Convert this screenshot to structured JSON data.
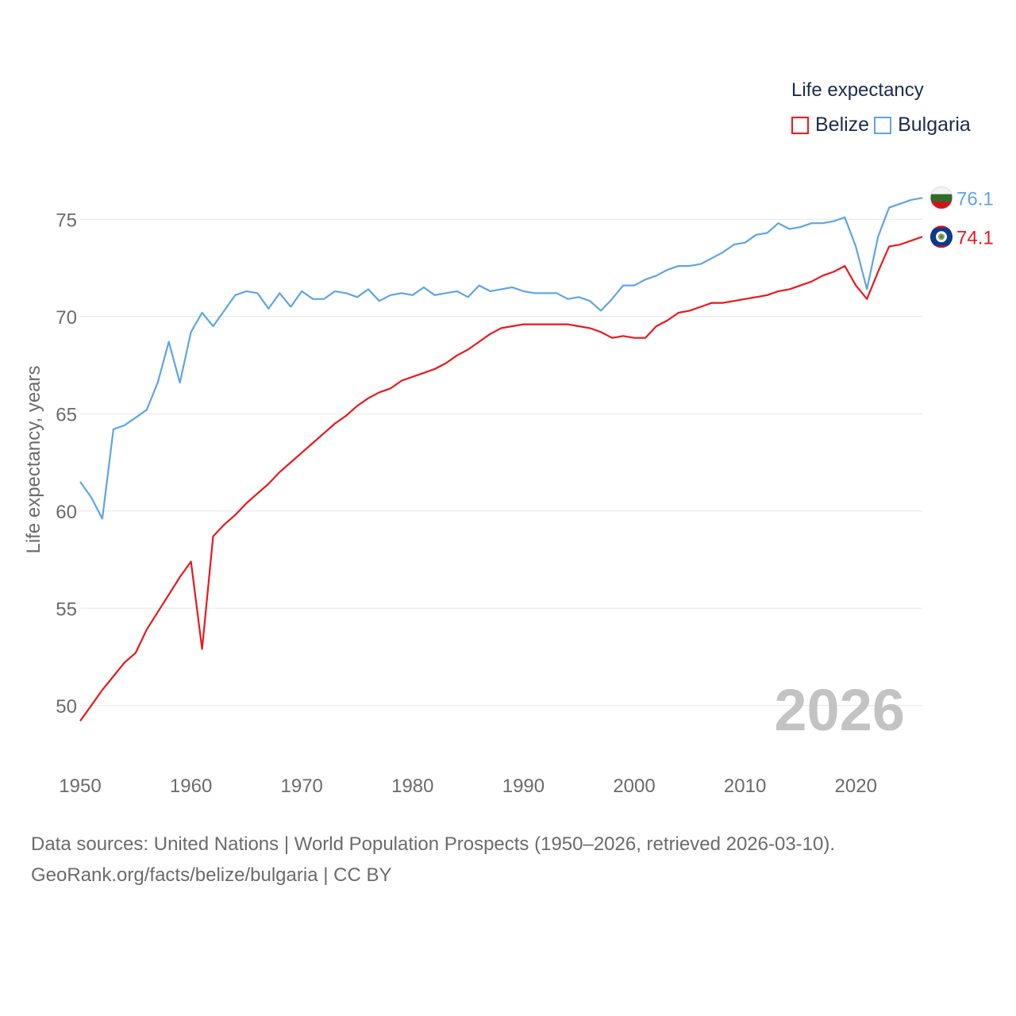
{
  "legend": {
    "title": "Life expectancy",
    "items": [
      {
        "label": "Belize",
        "color": "#e8191c"
      },
      {
        "label": "Bulgaria",
        "color": "#5fa4e4"
      }
    ]
  },
  "source": {
    "line1": "Data sources: United Nations | World Population Prospects (1950–2026, retrieved 2026-03-10).",
    "line2": "GeoRank.org/facts/belize/bulgaria | CC BY"
  },
  "chart_data": {
    "type": "line",
    "title": "Life expectancy",
    "xlabel": "",
    "ylabel": "Life expectancy, years",
    "year_label": "2026",
    "xlim": [
      1950,
      2026
    ],
    "ylim": [
      47.5,
      77.5
    ],
    "x_ticks": [
      1950,
      1960,
      1970,
      1980,
      1990,
      2000,
      2010,
      2020
    ],
    "y_ticks": [
      50,
      55,
      60,
      65,
      70,
      75
    ],
    "grid": true,
    "legend_position": "top-right",
    "x": [
      1950,
      1951,
      1952,
      1953,
      1954,
      1955,
      1956,
      1957,
      1958,
      1959,
      1960,
      1961,
      1962,
      1963,
      1964,
      1965,
      1966,
      1967,
      1968,
      1969,
      1970,
      1971,
      1972,
      1973,
      1974,
      1975,
      1976,
      1977,
      1978,
      1979,
      1980,
      1981,
      1982,
      1983,
      1984,
      1985,
      1986,
      1987,
      1988,
      1989,
      1990,
      1991,
      1992,
      1993,
      1994,
      1995,
      1996,
      1997,
      1998,
      1999,
      2000,
      2001,
      2002,
      2003,
      2004,
      2005,
      2006,
      2007,
      2008,
      2009,
      2010,
      2011,
      2012,
      2013,
      2014,
      2015,
      2016,
      2017,
      2018,
      2019,
      2020,
      2021,
      2022,
      2023,
      2024,
      2025,
      2026
    ],
    "series": [
      {
        "name": "Belize",
        "color": "#e8191c",
        "end_label": "74.1",
        "flag": "belize-flag",
        "values": [
          49.2,
          50.0,
          50.8,
          51.5,
          52.2,
          52.7,
          53.9,
          54.8,
          55.7,
          56.6,
          57.4,
          52.9,
          58.7,
          59.3,
          59.8,
          60.4,
          60.9,
          61.4,
          62.0,
          62.5,
          63.0,
          63.5,
          64.0,
          64.5,
          64.9,
          65.4,
          65.8,
          66.1,
          66.3,
          66.7,
          66.9,
          67.1,
          67.3,
          67.6,
          68.0,
          68.3,
          68.7,
          69.1,
          69.4,
          69.5,
          69.6,
          69.6,
          69.6,
          69.6,
          69.6,
          69.5,
          69.4,
          69.2,
          68.9,
          69.0,
          68.9,
          68.9,
          69.5,
          69.8,
          70.2,
          70.3,
          70.5,
          70.7,
          70.7,
          70.8,
          70.9,
          71.0,
          71.1,
          71.3,
          71.4,
          71.6,
          71.8,
          72.1,
          72.3,
          72.6,
          71.6,
          70.9,
          72.3,
          73.6,
          73.7,
          73.9,
          74.1
        ]
      },
      {
        "name": "Bulgaria",
        "color": "#5fa4e4",
        "end_label": "76.1",
        "flag": "bulgaria-flag",
        "values": [
          61.5,
          60.7,
          59.6,
          64.2,
          64.4,
          64.8,
          65.2,
          66.6,
          68.7,
          66.6,
          69.2,
          70.2,
          69.5,
          70.3,
          71.1,
          71.3,
          71.2,
          70.4,
          71.2,
          70.5,
          71.3,
          70.9,
          70.9,
          71.3,
          71.2,
          71.0,
          71.4,
          70.8,
          71.1,
          71.2,
          71.1,
          71.5,
          71.1,
          71.2,
          71.3,
          71.0,
          71.6,
          71.3,
          71.4,
          71.5,
          71.3,
          71.2,
          71.2,
          71.2,
          70.9,
          71.0,
          70.8,
          70.3,
          70.9,
          71.6,
          71.6,
          71.9,
          72.1,
          72.4,
          72.6,
          72.6,
          72.7,
          73.0,
          73.3,
          73.7,
          73.8,
          74.2,
          74.3,
          74.8,
          74.5,
          74.6,
          74.8,
          74.8,
          74.9,
          75.1,
          73.6,
          71.4,
          74.1,
          75.6,
          75.8,
          76.0,
          76.1
        ]
      }
    ]
  }
}
